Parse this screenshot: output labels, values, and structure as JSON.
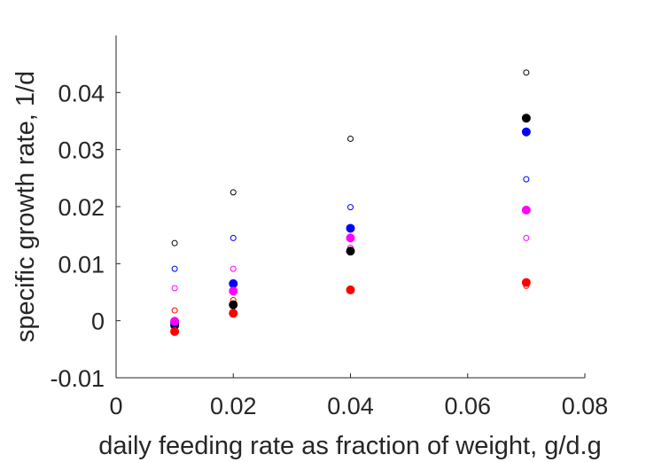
{
  "chart_data": {
    "type": "scatter",
    "title": "",
    "xlabel": "daily feeding rate as fraction of weight, g/d.g",
    "ylabel": "specific growth rate, 1/d",
    "xlim": [
      0,
      0.08
    ],
    "ylim": [
      -0.01,
      0.05
    ],
    "xticks": [
      "0",
      "0.02",
      "0.04",
      "0.06",
      "0.08"
    ],
    "xtick_values": [
      0,
      0.02,
      0.04,
      0.06,
      0.08
    ],
    "yticks": [
      "-0.01",
      "0",
      "0.01",
      "0.02",
      "0.03",
      "0.04"
    ],
    "ytick_values": [
      -0.01,
      0,
      0.01,
      0.02,
      0.03,
      0.04
    ],
    "grid": false,
    "legend": "none",
    "series": [
      {
        "color": "#000000",
        "marker": "open-circle",
        "x": [
          0.01,
          0.02,
          0.04,
          0.07
        ],
        "y": [
          0.0136,
          0.0225,
          0.0319,
          0.0435
        ]
      },
      {
        "color": "#0000ff",
        "marker": "open-circle",
        "x": [
          0.01,
          0.02,
          0.04,
          0.07
        ],
        "y": [
          0.0091,
          0.0145,
          0.0199,
          0.0248
        ]
      },
      {
        "color": "#ff00ff",
        "marker": "open-circle",
        "x": [
          0.01,
          0.02,
          0.04,
          0.07
        ],
        "y": [
          0.0057,
          0.0091,
          0.0128,
          0.0145
        ]
      },
      {
        "color": "#ff0000",
        "marker": "open-circle",
        "x": [
          0.01,
          0.02,
          0.04,
          0.07
        ],
        "y": [
          0.0018,
          0.0036,
          0.0056,
          0.0061
        ]
      },
      {
        "color": "#000000",
        "marker": "filled-circle",
        "x": [
          0.01,
          0.02,
          0.04,
          0.07
        ],
        "y": [
          -0.0008,
          0.0028,
          0.0122,
          0.0355
        ]
      },
      {
        "color": "#0000ff",
        "marker": "filled-circle",
        "x": [
          0.01,
          0.02,
          0.04,
          0.07
        ],
        "y": [
          -0.0003,
          0.0065,
          0.0162,
          0.0331
        ]
      },
      {
        "color": "#ff00ff",
        "marker": "filled-circle",
        "x": [
          0.01,
          0.02,
          0.04,
          0.07
        ],
        "y": [
          -0.0001,
          0.0052,
          0.0145,
          0.0194
        ]
      },
      {
        "color": "#ff0000",
        "marker": "filled-circle",
        "x": [
          0.01,
          0.02,
          0.04,
          0.07
        ],
        "y": [
          -0.0019,
          0.0013,
          0.0054,
          0.0067
        ]
      }
    ]
  }
}
